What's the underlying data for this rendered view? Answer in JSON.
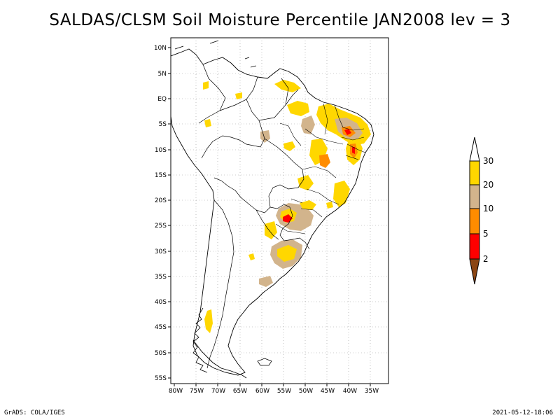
{
  "title": "SALDAS/CLSM Soil Moisture Percentile JAN2008 lev = 3",
  "footer": {
    "credit": "GrADS: COLA/IGES",
    "timestamp": "2021-05-12-18:06"
  },
  "map": {
    "region": "South America",
    "lon_range": [
      -81,
      -31
    ],
    "lat_range": [
      -56,
      12
    ],
    "lon_ticks": [
      "80W",
      "75W",
      "70W",
      "65W",
      "60W",
      "55W",
      "50W",
      "45W",
      "40W",
      "35W"
    ],
    "lat_ticks": [
      "10N",
      "5N",
      "EQ",
      "5S",
      "10S",
      "15S",
      "20S",
      "25S",
      "30S",
      "35S",
      "40S",
      "45S",
      "50S",
      "55S"
    ]
  },
  "legend": {
    "labels": [
      "30",
      "20",
      "10",
      "5",
      "2"
    ],
    "colors": {
      "above_30": "#ffffff",
      "20_30": "#ffd700",
      "10_20": "#d2b48c",
      "5_10": "#ff8c00",
      "2_5": "#ff0000",
      "below_2": "#8b4513"
    }
  }
}
